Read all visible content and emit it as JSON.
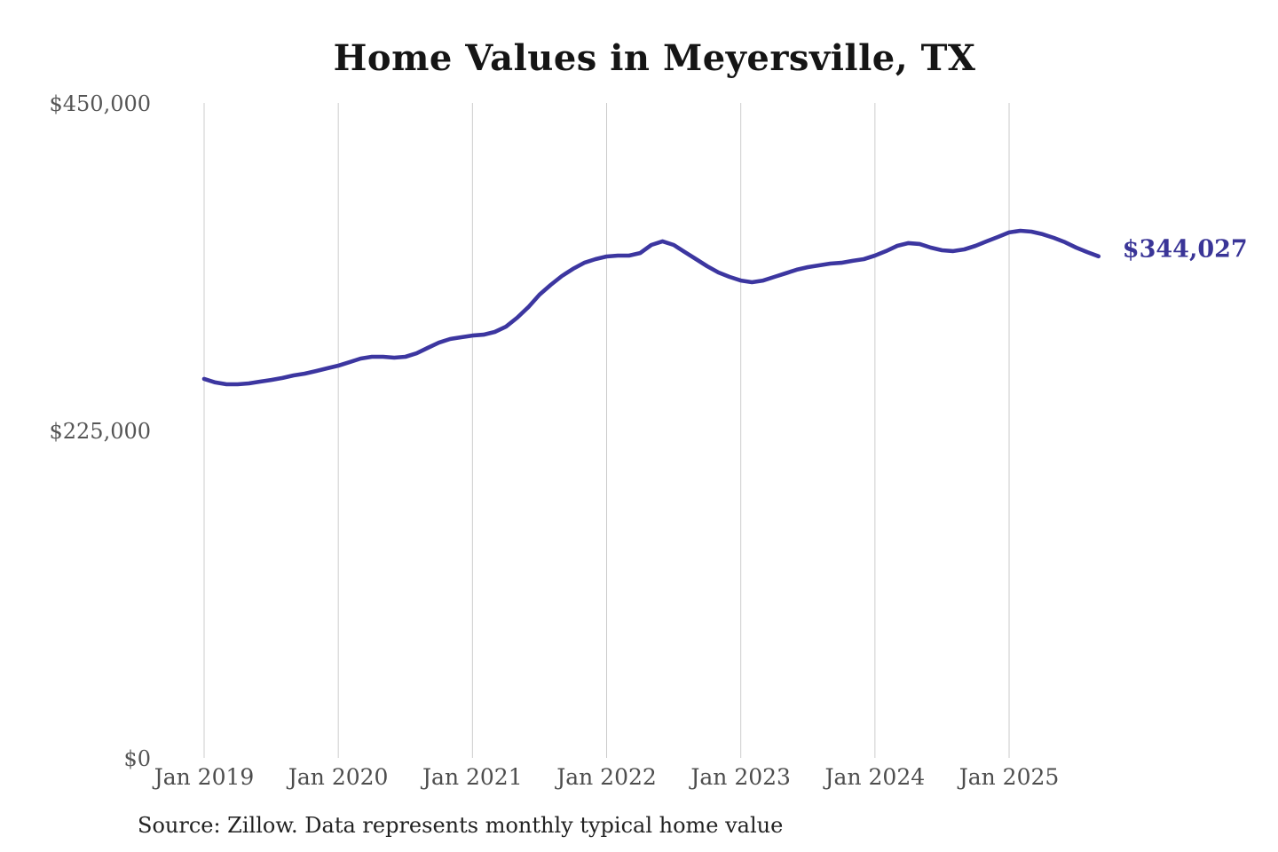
{
  "chart": {
    "title": "Home Values in Meyersville, TX",
    "end_label": "$344,027",
    "source_note": "Source: Zillow. Data represents monthly typical home value",
    "colors": {
      "line": "#3c36a0",
      "end_label": "#3a3597",
      "gridline": "#cccccc",
      "axis_text": "#555555",
      "title_text": "#151515",
      "source_text": "#222222",
      "background": "#ffffff"
    }
  },
  "chart_data": {
    "type": "line",
    "title": "Home Values in Meyersville, TX",
    "xlabel": "",
    "ylabel": "",
    "legend": "none",
    "grid": "vertical-only",
    "x_unit": "month",
    "x_first": "Jan 2019",
    "x_last": "Sep 2025",
    "x_tick_labels": [
      "Jan 2019",
      "Jan 2020",
      "Jan 2021",
      "Jan 2022",
      "Jan 2023",
      "Jan 2024",
      "Jan 2025"
    ],
    "y_tick_labels": [
      "$450,000",
      "$225,000",
      "$0"
    ],
    "y_tick_values": [
      450000,
      225000,
      0
    ],
    "ylim": [
      0,
      450000
    ],
    "series": [
      {
        "name": "Monthly typical home value",
        "final_value": 344027,
        "final_value_label": "$344,027",
        "values": [
          259800,
          257400,
          256100,
          256100,
          256700,
          257900,
          259100,
          260400,
          262200,
          263400,
          265200,
          267100,
          268900,
          271300,
          273800,
          275000,
          275000,
          274400,
          275000,
          277400,
          281100,
          284700,
          287200,
          288400,
          289600,
          290200,
          292100,
          295700,
          301800,
          309100,
          317700,
          324400,
          330500,
          335400,
          339600,
          342100,
          343900,
          344500,
          344500,
          346300,
          351800,
          354300,
          351800,
          346900,
          342100,
          337200,
          332900,
          329900,
          327400,
          326200,
          327400,
          329900,
          332300,
          334800,
          336600,
          337800,
          339000,
          339600,
          340900,
          342100,
          344500,
          347600,
          351200,
          353100,
          352500,
          350000,
          348200,
          347600,
          348800,
          351200,
          354300,
          357300,
          360400,
          361600,
          361000,
          359200,
          356700,
          353700,
          350000,
          346900,
          344027
        ]
      }
    ]
  }
}
